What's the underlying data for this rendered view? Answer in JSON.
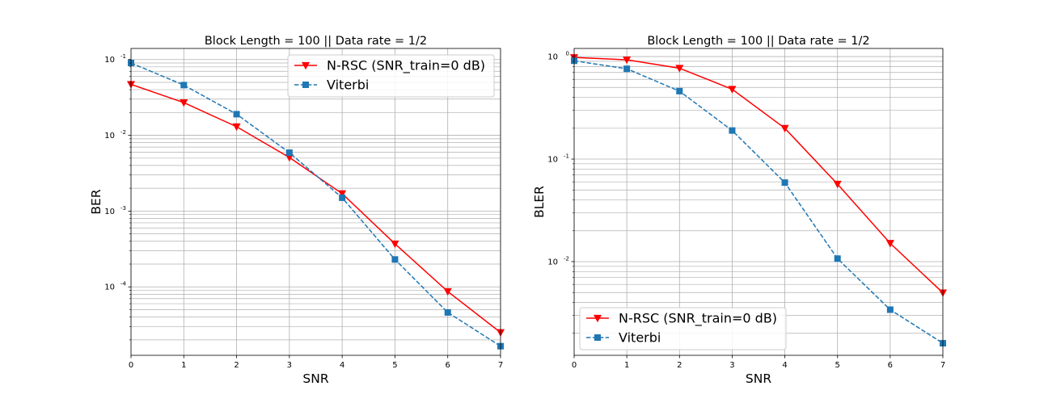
{
  "chart_data": [
    {
      "type": "line",
      "title": "Block Length = 100 || Data rate = 1/2",
      "xlabel": "SNR",
      "ylabel": "BER",
      "yscale": "log",
      "xlim": [
        0,
        7
      ],
      "ylim": [
        1.25e-05,
        0.14
      ],
      "x_ticks": [
        0,
        1,
        2,
        3,
        4,
        5,
        6,
        7
      ],
      "y_tick_exponents": [
        -1,
        -2,
        -3,
        -4
      ],
      "grid": true,
      "minor_grid": true,
      "legend_position": "top-right",
      "x": [
        0,
        1,
        2,
        3,
        4,
        5,
        6,
        7
      ],
      "series": [
        {
          "name": "N-RSC (SNR_train=0 dB)",
          "color": "#ff0000",
          "line": "solid",
          "marker": "triangle-down",
          "values": [
            0.047,
            0.027,
            0.013,
            0.0051,
            0.0017,
            0.00037,
            8.7e-05,
            2.5e-05
          ]
        },
        {
          "name": "Viterbi",
          "color": "#1f77b4",
          "line": "dashed",
          "marker": "square",
          "values": [
            0.09,
            0.046,
            0.019,
            0.0059,
            0.0015,
            0.00023,
            4.6e-05,
            1.65e-05
          ]
        }
      ]
    },
    {
      "type": "line",
      "title": "Block Length = 100 || Data rate = 1/2",
      "xlabel": "SNR",
      "ylabel": "BLER",
      "yscale": "log",
      "xlim": [
        0,
        7
      ],
      "ylim": [
        0.00122,
        1.2
      ],
      "x_ticks": [
        0,
        1,
        2,
        3,
        4,
        5,
        6,
        7
      ],
      "y_tick_exponents": [
        0,
        -1,
        -2
      ],
      "grid": true,
      "minor_grid": true,
      "legend_position": "bottom-left",
      "x": [
        0,
        1,
        2,
        3,
        4,
        5,
        6,
        7
      ],
      "series": [
        {
          "name": "N-RSC (SNR_train=0 dB)",
          "color": "#ff0000",
          "line": "solid",
          "marker": "triangle-down",
          "values": [
            0.98,
            0.93,
            0.77,
            0.48,
            0.2,
            0.057,
            0.0151,
            0.00497
          ]
        },
        {
          "name": "Viterbi",
          "color": "#1f77b4",
          "line": "dashed",
          "marker": "square",
          "values": [
            0.91,
            0.76,
            0.46,
            0.19,
            0.059,
            0.0107,
            0.0034,
            0.0016
          ]
        }
      ]
    }
  ]
}
